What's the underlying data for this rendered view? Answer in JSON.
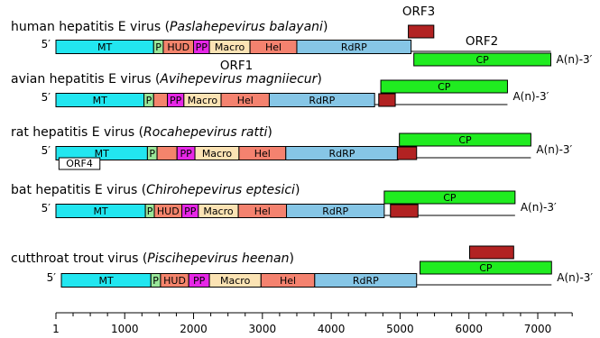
{
  "colors": {
    "MT": "#22e6f0",
    "P": "#99e699",
    "HUD": "#f4846c",
    "PP": "#e627e6",
    "Macro": "#fbe3b4",
    "Hel": "#f4826f",
    "RdRP": "#86c6e6",
    "CP": "#20ec20",
    "ORF3": "#b22222",
    "ORF4": "#ffffff"
  },
  "axis": {
    "min": 0,
    "max": 7500,
    "ticks": [
      1,
      1000,
      2000,
      3000,
      4000,
      5000,
      6000,
      7000
    ]
  },
  "labels": {
    "orf1": "ORF1",
    "orf2": "ORF2",
    "orf3": "ORF3"
  },
  "viruses": [
    {
      "name": "human hepatitis E virus (",
      "species": "Paslahepevirus balayani",
      "close": ")",
      "five_prime": "5′",
      "three_prime": "A(n)-3′",
      "orf1": [
        {
          "label": "MT",
          "start": 1,
          "end": 1420
        },
        {
          "label": "P",
          "start": 1420,
          "end": 1560
        },
        {
          "label": "HUD",
          "start": 1560,
          "end": 2000
        },
        {
          "label": "PP",
          "start": 2000,
          "end": 2230
        },
        {
          "label": "Macro",
          "start": 2230,
          "end": 2820
        },
        {
          "label": "Hel",
          "start": 2820,
          "end": 3500
        },
        {
          "label": "RdRP",
          "start": 3500,
          "end": 5160
        }
      ],
      "orf2": {
        "label": "CP",
        "start": 5200,
        "end": 7190
      },
      "orf3": {
        "start": 5120,
        "end": 5490
      }
    },
    {
      "name": "avian hepatitis E virus (",
      "species": "Avihepevirus magniiecur",
      "close": ")",
      "five_prime": "5′",
      "three_prime": "A(n)-3′",
      "orf1": [
        {
          "label": "MT",
          "start": 1,
          "end": 1280
        },
        {
          "label": "P",
          "start": 1280,
          "end": 1420
        },
        {
          "label": "",
          "start": 1420,
          "end": 1620
        },
        {
          "label": "PP",
          "start": 1620,
          "end": 1860
        },
        {
          "label": "Macro",
          "start": 1860,
          "end": 2400
        },
        {
          "label": "Hel",
          "start": 2400,
          "end": 3100
        },
        {
          "label": "RdRP",
          "start": 3100,
          "end": 4630
        }
      ],
      "orf2": {
        "label": "CP",
        "start": 4720,
        "end": 6560
      },
      "orf3": {
        "start": 4690,
        "end": 4930
      }
    },
    {
      "name": "rat hepatitis E virus (",
      "species": "Rocahepevirus ratti",
      "close": ")",
      "five_prime": "5′",
      "three_prime": "A(n)-3′",
      "orf1": [
        {
          "label": "MT",
          "start": 1,
          "end": 1330
        },
        {
          "label": "P",
          "start": 1330,
          "end": 1470
        },
        {
          "label": "",
          "start": 1470,
          "end": 1760
        },
        {
          "label": "PP",
          "start": 1760,
          "end": 2020
        },
        {
          "label": "Macro",
          "start": 2020,
          "end": 2660
        },
        {
          "label": "Hel",
          "start": 2660,
          "end": 3340
        },
        {
          "label": "RdRP",
          "start": 3340,
          "end": 4970
        }
      ],
      "orf2": {
        "label": "CP",
        "start": 4990,
        "end": 6900
      },
      "orf3": {
        "start": 4960,
        "end": 5240
      },
      "orf4": {
        "label": "ORF4",
        "start": 45,
        "end": 640
      }
    },
    {
      "name": "bat hepatitis E virus (",
      "species": "Chirohepevirus eptesici",
      "close": ")",
      "five_prime": "5′",
      "three_prime": "A(n)-3′",
      "orf1": [
        {
          "label": "MT",
          "start": 1,
          "end": 1300
        },
        {
          "label": "P",
          "start": 1300,
          "end": 1430
        },
        {
          "label": "HUD",
          "start": 1430,
          "end": 1830
        },
        {
          "label": "PP",
          "start": 1830,
          "end": 2070
        },
        {
          "label": "Macro",
          "start": 2070,
          "end": 2650
        },
        {
          "label": "Hel",
          "start": 2650,
          "end": 3350
        },
        {
          "label": "RdRP",
          "start": 3350,
          "end": 4770
        }
      ],
      "orf2": {
        "label": "CP",
        "start": 4770,
        "end": 6670
      },
      "orf3": {
        "start": 4860,
        "end": 5260
      }
    },
    {
      "name": "cutthroat trout virus (",
      "species": "Piscihepevirus heenan",
      "close": ")",
      "five_prime": "5′",
      "three_prime": "A(n)-3′",
      "orf1": [
        {
          "label": "MT",
          "start": 80,
          "end": 1380
        },
        {
          "label": "P",
          "start": 1380,
          "end": 1520
        },
        {
          "label": "HUD",
          "start": 1520,
          "end": 1930
        },
        {
          "label": "PP",
          "start": 1930,
          "end": 2230
        },
        {
          "label": "Macro",
          "start": 2230,
          "end": 2980
        },
        {
          "label": "Hel",
          "start": 2980,
          "end": 3760
        },
        {
          "label": "RdRP",
          "start": 3760,
          "end": 5240
        }
      ],
      "orf2": {
        "label": "CP",
        "start": 5290,
        "end": 7200
      },
      "orf3": {
        "start": 6010,
        "end": 6650
      }
    }
  ]
}
